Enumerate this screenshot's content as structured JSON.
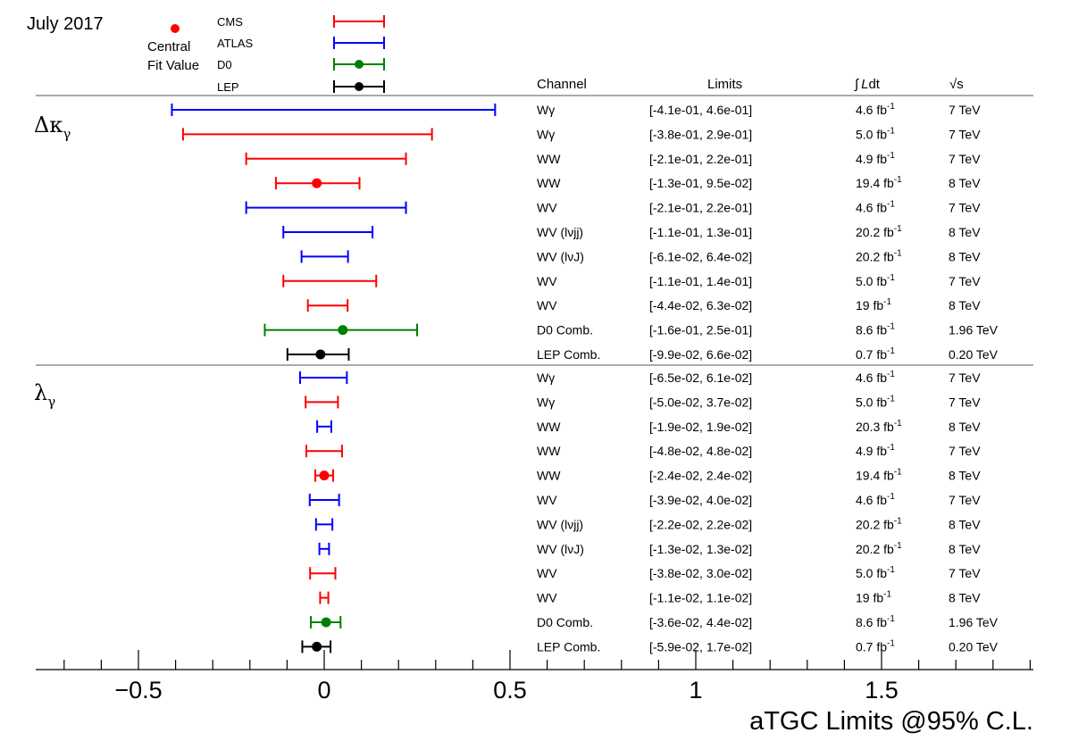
{
  "header": {
    "date_label": "July 2017",
    "central_label_line1": "Central",
    "central_label_line2": "Fit Value"
  },
  "legend": [
    {
      "name": "CMS",
      "color": "#ff0000",
      "has_central": false
    },
    {
      "name": "ATLAS",
      "color": "#0000ff",
      "has_central": false
    },
    {
      "name": "D0",
      "color": "#008000",
      "has_central": true
    },
    {
      "name": "LEP",
      "color": "#000000",
      "has_central": true
    }
  ],
  "columns": {
    "channel": "Channel",
    "limits": "Limits",
    "lumi_integral": "∫",
    "lumi_L": "L",
    "lumi_dt": "dt",
    "sqrt_s": "√s"
  },
  "sections": [
    {
      "label": "Δκ",
      "subscript": "γ"
    },
    {
      "label": "λ",
      "subscript": "γ"
    }
  ],
  "chart_data": {
    "type": "interval",
    "title": "",
    "xlabel": "aTGC Limits @95% C.L.",
    "xlim": [
      -0.78,
      1.9
    ],
    "xticks": [
      {
        "value": -0.5,
        "label": "−0.5"
      },
      {
        "value": 0,
        "label": "0"
      },
      {
        "value": 0.5,
        "label": "0.5"
      },
      {
        "value": 1,
        "label": "1"
      },
      {
        "value": 1.5,
        "label": "1.5"
      }
    ],
    "minor_tick_step": 0.1,
    "rows": [
      {
        "section": 0,
        "channel": "Wγ",
        "low": -0.41,
        "high": 0.46,
        "central": null,
        "experiment": "ATLAS",
        "limits": "[-4.1e-01, 4.6e-01]",
        "lumi_value": "4.6",
        "lumi_unit": "fb",
        "lumi_exp": "-1",
        "sqrt_s": "7 TeV"
      },
      {
        "section": 0,
        "channel": "Wγ",
        "low": -0.38,
        "high": 0.29,
        "central": null,
        "experiment": "CMS",
        "limits": "[-3.8e-01, 2.9e-01]",
        "lumi_value": "5.0",
        "lumi_unit": "fb",
        "lumi_exp": "-1",
        "sqrt_s": "7 TeV"
      },
      {
        "section": 0,
        "channel": "WW",
        "low": -0.21,
        "high": 0.22,
        "central": null,
        "experiment": "CMS",
        "limits": "[-2.1e-01, 2.2e-01]",
        "lumi_value": "4.9",
        "lumi_unit": "fb",
        "lumi_exp": "-1",
        "sqrt_s": "7 TeV"
      },
      {
        "section": 0,
        "channel": "WW",
        "low": -0.13,
        "high": 0.095,
        "central": -0.02,
        "experiment": "CMS",
        "limits": "[-1.3e-01, 9.5e-02]",
        "lumi_value": "19.4",
        "lumi_unit": "fb",
        "lumi_exp": "-1",
        "sqrt_s": "8 TeV"
      },
      {
        "section": 0,
        "channel": "WV",
        "low": -0.21,
        "high": 0.22,
        "central": null,
        "experiment": "ATLAS",
        "limits": "[-2.1e-01, 2.2e-01]",
        "lumi_value": "4.6",
        "lumi_unit": "fb",
        "lumi_exp": "-1",
        "sqrt_s": "7 TeV"
      },
      {
        "section": 0,
        "channel": "WV (lνjj)",
        "low": -0.11,
        "high": 0.13,
        "central": null,
        "experiment": "ATLAS",
        "limits": "[-1.1e-01, 1.3e-01]",
        "lumi_value": "20.2",
        "lumi_unit": "fb",
        "lumi_exp": "-1",
        "sqrt_s": "8 TeV"
      },
      {
        "section": 0,
        "channel": "WV (lνJ)",
        "low": -0.061,
        "high": 0.064,
        "central": null,
        "experiment": "ATLAS",
        "limits": "[-6.1e-02, 6.4e-02]",
        "lumi_value": "20.2",
        "lumi_unit": "fb",
        "lumi_exp": "-1",
        "sqrt_s": "8 TeV"
      },
      {
        "section": 0,
        "channel": "WV",
        "low": -0.11,
        "high": 0.14,
        "central": null,
        "experiment": "CMS",
        "limits": "[-1.1e-01, 1.4e-01]",
        "lumi_value": "5.0",
        "lumi_unit": "fb",
        "lumi_exp": "-1",
        "sqrt_s": "7 TeV"
      },
      {
        "section": 0,
        "channel": "WV",
        "low": -0.044,
        "high": 0.063,
        "central": null,
        "experiment": "CMS",
        "limits": "[-4.4e-02, 6.3e-02]",
        "lumi_value": "19",
        "lumi_unit": "fb",
        "lumi_exp": "-1",
        "sqrt_s": "8 TeV"
      },
      {
        "section": 0,
        "channel": "D0 Comb.",
        "low": -0.16,
        "high": 0.25,
        "central": 0.05,
        "experiment": "D0",
        "limits": "[-1.6e-01, 2.5e-01]",
        "lumi_value": "8.6",
        "lumi_unit": "fb",
        "lumi_exp": "-1",
        "sqrt_s": "1.96 TeV"
      },
      {
        "section": 0,
        "channel": "LEP Comb.",
        "low": -0.099,
        "high": 0.066,
        "central": -0.01,
        "experiment": "LEP",
        "limits": "[-9.9e-02, 6.6e-02]",
        "lumi_value": "0.7",
        "lumi_unit": "fb",
        "lumi_exp": "-1",
        "sqrt_s": "0.20 TeV"
      },
      {
        "section": 1,
        "channel": "Wγ",
        "low": -0.065,
        "high": 0.061,
        "central": null,
        "experiment": "ATLAS",
        "limits": "[-6.5e-02, 6.1e-02]",
        "lumi_value": "4.6",
        "lumi_unit": "fb",
        "lumi_exp": "-1",
        "sqrt_s": "7 TeV"
      },
      {
        "section": 1,
        "channel": "Wγ",
        "low": -0.05,
        "high": 0.037,
        "central": null,
        "experiment": "CMS",
        "limits": "[-5.0e-02, 3.7e-02]",
        "lumi_value": "5.0",
        "lumi_unit": "fb",
        "lumi_exp": "-1",
        "sqrt_s": "7 TeV"
      },
      {
        "section": 1,
        "channel": "WW",
        "low": -0.019,
        "high": 0.019,
        "central": null,
        "experiment": "ATLAS",
        "limits": "[-1.9e-02, 1.9e-02]",
        "lumi_value": "20.3",
        "lumi_unit": "fb",
        "lumi_exp": "-1",
        "sqrt_s": "8 TeV"
      },
      {
        "section": 1,
        "channel": "WW",
        "low": -0.048,
        "high": 0.048,
        "central": null,
        "experiment": "CMS",
        "limits": "[-4.8e-02, 4.8e-02]",
        "lumi_value": "4.9",
        "lumi_unit": "fb",
        "lumi_exp": "-1",
        "sqrt_s": "7 TeV"
      },
      {
        "section": 1,
        "channel": "WW",
        "low": -0.024,
        "high": 0.024,
        "central": 0.0,
        "experiment": "CMS",
        "limits": "[-2.4e-02, 2.4e-02]",
        "lumi_value": "19.4",
        "lumi_unit": "fb",
        "lumi_exp": "-1",
        "sqrt_s": "8 TeV"
      },
      {
        "section": 1,
        "channel": "WV",
        "low": -0.039,
        "high": 0.04,
        "central": null,
        "experiment": "ATLAS",
        "limits": "[-3.9e-02, 4.0e-02]",
        "lumi_value": "4.6",
        "lumi_unit": "fb",
        "lumi_exp": "-1",
        "sqrt_s": "7 TeV"
      },
      {
        "section": 1,
        "channel": "WV (lνjj)",
        "low": -0.022,
        "high": 0.022,
        "central": null,
        "experiment": "ATLAS",
        "limits": "[-2.2e-02, 2.2e-02]",
        "lumi_value": "20.2",
        "lumi_unit": "fb",
        "lumi_exp": "-1",
        "sqrt_s": "8 TeV"
      },
      {
        "section": 1,
        "channel": "WV (lνJ)",
        "low": -0.013,
        "high": 0.013,
        "central": null,
        "experiment": "ATLAS",
        "limits": "[-1.3e-02, 1.3e-02]",
        "lumi_value": "20.2",
        "lumi_unit": "fb",
        "lumi_exp": "-1",
        "sqrt_s": "8 TeV"
      },
      {
        "section": 1,
        "channel": "WV",
        "low": -0.038,
        "high": 0.03,
        "central": null,
        "experiment": "CMS",
        "limits": "[-3.8e-02, 3.0e-02]",
        "lumi_value": "5.0",
        "lumi_unit": "fb",
        "lumi_exp": "-1",
        "sqrt_s": "7 TeV"
      },
      {
        "section": 1,
        "channel": "WV",
        "low": -0.011,
        "high": 0.011,
        "central": null,
        "experiment": "CMS",
        "limits": "[-1.1e-02, 1.1e-02]",
        "lumi_value": "19",
        "lumi_unit": "fb",
        "lumi_exp": "-1",
        "sqrt_s": "8 TeV"
      },
      {
        "section": 1,
        "channel": "D0 Comb.",
        "low": -0.036,
        "high": 0.044,
        "central": 0.005,
        "experiment": "D0",
        "limits": "[-3.6e-02, 4.4e-02]",
        "lumi_value": "8.6",
        "lumi_unit": "fb",
        "lumi_exp": "-1",
        "sqrt_s": "1.96 TeV"
      },
      {
        "section": 1,
        "channel": "LEP Comb.",
        "low": -0.059,
        "high": 0.017,
        "central": -0.02,
        "experiment": "LEP",
        "limits": "[-5.9e-02, 1.7e-02]",
        "lumi_value": "0.7",
        "lumi_unit": "fb",
        "lumi_exp": "-1",
        "sqrt_s": "0.20 TeV"
      }
    ]
  }
}
